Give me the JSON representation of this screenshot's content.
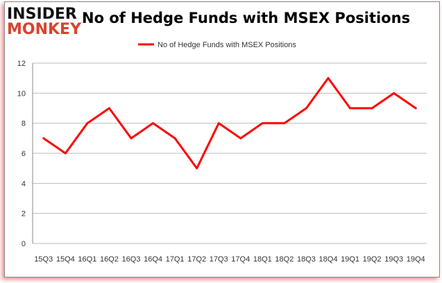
{
  "logo": {
    "line1": "INSIDER",
    "line2": "MONKEY"
  },
  "chart_data": {
    "type": "line",
    "title": "No of Hedge Funds with MSEX Positions",
    "xlabel": "",
    "ylabel": "",
    "categories": [
      "15Q3",
      "15Q4",
      "16Q1",
      "16Q2",
      "16Q3",
      "16Q4",
      "17Q1",
      "17Q2",
      "17Q3",
      "17Q4",
      "18Q1",
      "18Q2",
      "18Q3",
      "18Q4",
      "19Q1",
      "19Q2",
      "19Q3",
      "19Q4"
    ],
    "series": [
      {
        "name": "No of Hedge Funds with MSEX Positions",
        "color": "#ff0000",
        "values": [
          7,
          6,
          8,
          9,
          7,
          8,
          7,
          5,
          8,
          7,
          8,
          8,
          9,
          11,
          9,
          9,
          10,
          9
        ]
      }
    ],
    "ylim": [
      0,
      12
    ],
    "yticks": [
      0,
      2,
      4,
      6,
      8,
      10,
      12
    ],
    "grid": true,
    "legend": "top-center"
  }
}
